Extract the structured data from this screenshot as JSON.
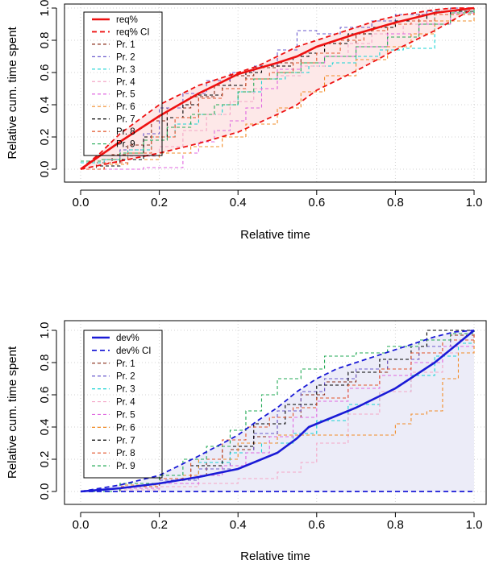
{
  "chart_data": [
    {
      "type": "line",
      "title": "",
      "xlabel": "Relative time",
      "ylabel": "Relative cum. time spent",
      "xlim": [
        0,
        1
      ],
      "ylim": [
        0,
        1
      ],
      "xticks": [
        "0.0",
        "0.2",
        "0.4",
        "0.6",
        "0.8",
        "1.0"
      ],
      "yticks": [
        "0.0",
        "0.2",
        "0.4",
        "0.6",
        "0.8",
        "1.0"
      ],
      "grid": true,
      "legend_position": "top-left",
      "accent_color": "#ee1111",
      "band_color": "#fde8e8",
      "legend": [
        "req%",
        "req% CI",
        "Pr. 1",
        "Pr. 2",
        "Pr. 3",
        "Pr. 4",
        "Pr. 5",
        "Pr. 6",
        "Pr. 7",
        "Pr. 8",
        "Pr. 9"
      ],
      "main": {
        "name": "req%",
        "color": "#ee1111",
        "x": [
          0,
          0.1,
          0.2,
          0.3,
          0.4,
          0.5,
          0.55,
          0.6,
          0.7,
          0.8,
          0.9,
          1.0
        ],
        "y": [
          0,
          0.17,
          0.33,
          0.47,
          0.59,
          0.66,
          0.7,
          0.76,
          0.84,
          0.91,
          0.97,
          1.0
        ]
      },
      "ci_upper": {
        "name": "req% CI",
        "x": [
          0,
          0.05,
          0.1,
          0.15,
          0.2,
          0.25,
          0.3,
          0.35,
          0.4,
          0.45,
          0.5,
          0.55,
          0.6,
          0.65,
          0.7,
          0.75,
          0.8,
          0.85,
          0.9,
          0.95,
          1.0
        ],
        "y": [
          0,
          0.1,
          0.22,
          0.31,
          0.4,
          0.46,
          0.52,
          0.56,
          0.6,
          0.64,
          0.7,
          0.76,
          0.8,
          0.84,
          0.88,
          0.92,
          0.95,
          0.97,
          0.99,
          1.0,
          1.0
        ]
      },
      "ci_lower": {
        "name": "req% CI",
        "x": [
          0,
          0.1,
          0.2,
          0.3,
          0.4,
          0.5,
          0.55,
          0.6,
          0.7,
          0.8,
          0.9,
          1.0
        ],
        "y": [
          0,
          0.05,
          0.1,
          0.16,
          0.23,
          0.34,
          0.4,
          0.49,
          0.61,
          0.74,
          0.86,
          1.0
        ]
      },
      "series": [
        {
          "name": "Pr. 1",
          "color": "#8b2e1a",
          "x": [
            0,
            0.04,
            0.08,
            0.12,
            0.18,
            0.22,
            0.28,
            0.34,
            0.38,
            0.44,
            0.5,
            0.56,
            0.62,
            0.7,
            0.78,
            0.86,
            0.92,
            1.0
          ],
          "y": [
            0,
            0.04,
            0.09,
            0.15,
            0.3,
            0.38,
            0.45,
            0.52,
            0.58,
            0.63,
            0.66,
            0.72,
            0.78,
            0.84,
            0.9,
            0.96,
            0.98,
            1.0
          ]
        },
        {
          "name": "Pr. 2",
          "color": "#6a5acd",
          "x": [
            0,
            0.06,
            0.1,
            0.16,
            0.2,
            0.26,
            0.32,
            0.38,
            0.44,
            0.5,
            0.55,
            0.6,
            0.66,
            0.74,
            0.8,
            0.88,
            0.94,
            1.0
          ],
          "y": [
            0,
            0.06,
            0.12,
            0.22,
            0.38,
            0.47,
            0.55,
            0.6,
            0.64,
            0.74,
            0.86,
            0.84,
            0.88,
            0.92,
            0.96,
            0.98,
            1.0,
            1.0
          ]
        },
        {
          "name": "Pr. 3",
          "color": "#17d3d3",
          "x": [
            0,
            0.06,
            0.12,
            0.18,
            0.24,
            0.3,
            0.36,
            0.4,
            0.46,
            0.52,
            0.58,
            0.64,
            0.7,
            0.76,
            0.82,
            0.86,
            0.9,
            1.0
          ],
          "y": [
            0.04,
            0.06,
            0.12,
            0.2,
            0.28,
            0.34,
            0.4,
            0.48,
            0.56,
            0.6,
            0.64,
            0.66,
            0.7,
            0.74,
            0.75,
            0.75,
            0.98,
            1.0
          ]
        },
        {
          "name": "Pr. 4",
          "color": "#f4a6c6",
          "x": [
            0,
            0.06,
            0.12,
            0.2,
            0.26,
            0.32,
            0.38,
            0.44,
            0.5,
            0.56,
            0.62,
            0.68,
            0.74,
            0.82,
            0.88,
            1.0
          ],
          "y": [
            0,
            0.04,
            0.08,
            0.14,
            0.24,
            0.34,
            0.42,
            0.5,
            0.58,
            0.64,
            0.7,
            0.78,
            0.84,
            0.9,
            0.96,
            1.0
          ]
        },
        {
          "name": "Pr. 5",
          "color": "#e066e0",
          "x": [
            0,
            0.08,
            0.16,
            0.23,
            0.26,
            0.3,
            0.34,
            0.38,
            0.42,
            0.46,
            0.5,
            0.56,
            0.62,
            0.7,
            0.78,
            0.86,
            0.94,
            1.0
          ],
          "y": [
            0,
            0.0,
            0.01,
            0.01,
            0.1,
            0.17,
            0.24,
            0.3,
            0.38,
            0.5,
            0.62,
            0.66,
            0.7,
            0.76,
            0.84,
            0.9,
            0.97,
            1.0
          ]
        },
        {
          "name": "Pr. 6",
          "color": "#f28c28",
          "x": [
            0,
            0.06,
            0.12,
            0.2,
            0.28,
            0.36,
            0.42,
            0.5,
            0.56,
            0.62,
            0.7,
            0.78,
            0.84,
            0.9,
            1.0
          ],
          "y": [
            0,
            0.03,
            0.06,
            0.1,
            0.14,
            0.2,
            0.28,
            0.38,
            0.48,
            0.58,
            0.68,
            0.76,
            0.84,
            0.92,
            1.0
          ]
        },
        {
          "name": "Pr. 7",
          "color": "#000000",
          "x": [
            0,
            0.05,
            0.1,
            0.16,
            0.22,
            0.26,
            0.3,
            0.36,
            0.42,
            0.46,
            0.54,
            0.58,
            0.62,
            0.68,
            0.74,
            0.8,
            0.88,
            0.94,
            1.0
          ],
          "y": [
            0,
            0.02,
            0.06,
            0.2,
            0.32,
            0.4,
            0.46,
            0.52,
            0.6,
            0.64,
            0.7,
            0.72,
            0.78,
            0.84,
            0.88,
            0.92,
            0.96,
            0.98,
            1.0
          ]
        },
        {
          "name": "Pr. 8",
          "color": "#e2532a",
          "x": [
            0,
            0.06,
            0.12,
            0.18,
            0.24,
            0.3,
            0.36,
            0.42,
            0.48,
            0.54,
            0.6,
            0.66,
            0.72,
            0.78,
            0.84,
            0.9,
            1.0
          ],
          "y": [
            0,
            0.04,
            0.1,
            0.2,
            0.32,
            0.44,
            0.5,
            0.56,
            0.6,
            0.66,
            0.72,
            0.8,
            0.86,
            0.9,
            0.92,
            0.96,
            1.0
          ]
        },
        {
          "name": "Pr. 9",
          "color": "#22aa55",
          "x": [
            0,
            0.05,
            0.1,
            0.16,
            0.22,
            0.28,
            0.34,
            0.4,
            0.44,
            0.5,
            0.56,
            0.62,
            0.7,
            0.78,
            0.86,
            0.94,
            1.0
          ],
          "y": [
            0.05,
            0.06,
            0.1,
            0.18,
            0.26,
            0.34,
            0.4,
            0.48,
            0.56,
            0.6,
            0.66,
            0.7,
            0.76,
            0.82,
            0.9,
            0.97,
            1.0
          ]
        }
      ]
    },
    {
      "type": "line",
      "title": "",
      "xlabel": "Relative time",
      "ylabel": "Relative cum. time spent",
      "xlim": [
        0,
        1
      ],
      "ylim": [
        0,
        1
      ],
      "xticks": [
        "0.0",
        "0.2",
        "0.4",
        "0.6",
        "0.8",
        "1.0"
      ],
      "yticks": [
        "0.0",
        "0.2",
        "0.4",
        "0.6",
        "0.8",
        "1.0"
      ],
      "grid": true,
      "legend_position": "top-left",
      "accent_color": "#1a1ad6",
      "band_color": "#ececf8",
      "legend": [
        "dev%",
        "dev% CI",
        "Pr. 1",
        "Pr. 2",
        "Pr. 3",
        "Pr. 4",
        "Pr. 5",
        "Pr. 6",
        "Pr. 7",
        "Pr. 8",
        "Pr. 9"
      ],
      "main": {
        "name": "dev%",
        "color": "#1a1ad6",
        "x": [
          0,
          0.1,
          0.2,
          0.3,
          0.4,
          0.5,
          0.55,
          0.58,
          0.6,
          0.7,
          0.8,
          0.9,
          1.0
        ],
        "y": [
          0,
          0.02,
          0.05,
          0.09,
          0.14,
          0.24,
          0.33,
          0.4,
          0.42,
          0.52,
          0.64,
          0.8,
          1.0
        ]
      },
      "ci_upper": {
        "name": "dev% CI",
        "x": [
          0,
          0.1,
          0.2,
          0.3,
          0.4,
          0.45,
          0.5,
          0.55,
          0.6,
          0.65,
          0.7,
          0.75,
          0.8,
          0.85,
          0.9,
          0.95,
          1.0
        ],
        "y": [
          0,
          0.04,
          0.1,
          0.22,
          0.35,
          0.44,
          0.52,
          0.62,
          0.7,
          0.76,
          0.8,
          0.84,
          0.88,
          0.92,
          0.96,
          0.99,
          1.0
        ]
      },
      "ci_lower": {
        "name": "dev% CI",
        "x": [
          0,
          0.25,
          0.5,
          0.75,
          1.0
        ],
        "y": [
          0,
          0,
          0,
          0,
          0
        ]
      },
      "series": [
        {
          "name": "Pr. 1",
          "color": "#8b2e1a",
          "x": [
            0,
            0.1,
            0.2,
            0.26,
            0.32,
            0.38,
            0.44,
            0.5,
            0.56,
            0.62,
            0.7,
            0.78,
            0.86,
            0.94,
            1.0
          ],
          "y": [
            0,
            0.02,
            0.05,
            0.1,
            0.18,
            0.26,
            0.34,
            0.46,
            0.6,
            0.68,
            0.74,
            0.82,
            0.9,
            0.97,
            1.0
          ]
        },
        {
          "name": "Pr. 2",
          "color": "#6a5acd",
          "x": [
            0,
            0.1,
            0.2,
            0.3,
            0.38,
            0.44,
            0.5,
            0.56,
            0.62,
            0.7,
            0.78,
            0.86,
            0.94,
            1.0
          ],
          "y": [
            0,
            0.03,
            0.07,
            0.14,
            0.24,
            0.36,
            0.5,
            0.62,
            0.7,
            0.76,
            0.82,
            0.9,
            0.98,
            1.0
          ]
        },
        {
          "name": "Pr. 3",
          "color": "#17d3d3",
          "x": [
            0,
            0.1,
            0.2,
            0.3,
            0.38,
            0.46,
            0.54,
            0.6,
            0.68,
            0.76,
            0.84,
            0.9,
            0.96,
            1.0
          ],
          "y": [
            0,
            0.04,
            0.08,
            0.18,
            0.24,
            0.3,
            0.36,
            0.44,
            0.54,
            0.62,
            0.72,
            0.84,
            0.92,
            1.0
          ]
        },
        {
          "name": "Pr. 4",
          "color": "#f4a6c6",
          "x": [
            0,
            0.1,
            0.2,
            0.3,
            0.4,
            0.5,
            0.56,
            0.6,
            0.68,
            0.76,
            0.84,
            0.92,
            1.0
          ],
          "y": [
            0,
            0.01,
            0.03,
            0.05,
            0.08,
            0.12,
            0.18,
            0.3,
            0.48,
            0.62,
            0.74,
            0.86,
            1.0
          ]
        },
        {
          "name": "Pr. 5",
          "color": "#e066e0",
          "x": [
            0,
            0.1,
            0.2,
            0.3,
            0.36,
            0.42,
            0.48,
            0.54,
            0.6,
            0.68,
            0.76,
            0.84,
            0.92,
            1.0
          ],
          "y": [
            0,
            0.02,
            0.05,
            0.1,
            0.16,
            0.24,
            0.34,
            0.46,
            0.56,
            0.64,
            0.72,
            0.8,
            0.9,
            1.0
          ]
        },
        {
          "name": "Pr. 6",
          "color": "#f28c28",
          "x": [
            0,
            0.1,
            0.2,
            0.3,
            0.4,
            0.5,
            0.6,
            0.7,
            0.76,
            0.8,
            0.84,
            0.88,
            0.92,
            0.96,
            1.0
          ],
          "y": [
            0,
            0.04,
            0.1,
            0.2,
            0.3,
            0.35,
            0.35,
            0.35,
            0.35,
            0.42,
            0.48,
            0.5,
            0.7,
            0.86,
            1.0
          ]
        },
        {
          "name": "Pr. 7",
          "color": "#000000",
          "x": [
            0,
            0.1,
            0.2,
            0.28,
            0.36,
            0.44,
            0.52,
            0.6,
            0.68,
            0.76,
            0.84,
            0.88,
            0.94,
            1.0
          ],
          "y": [
            0,
            0.03,
            0.08,
            0.16,
            0.28,
            0.42,
            0.54,
            0.66,
            0.74,
            0.82,
            0.9,
            1.0,
            1.0,
            1.0
          ]
        },
        {
          "name": "Pr. 8",
          "color": "#e2532a",
          "x": [
            0,
            0.1,
            0.2,
            0.28,
            0.36,
            0.42,
            0.48,
            0.54,
            0.6,
            0.68,
            0.76,
            0.84,
            0.92,
            1.0
          ],
          "y": [
            0,
            0.03,
            0.08,
            0.2,
            0.32,
            0.4,
            0.46,
            0.52,
            0.58,
            0.66,
            0.76,
            0.86,
            0.94,
            1.0
          ]
        },
        {
          "name": "Pr. 9",
          "color": "#22aa55",
          "x": [
            0,
            0.1,
            0.2,
            0.26,
            0.32,
            0.38,
            0.42,
            0.46,
            0.5,
            0.56,
            0.62,
            0.7,
            0.78,
            0.86,
            0.94,
            1.0
          ],
          "y": [
            0,
            0.05,
            0.1,
            0.2,
            0.28,
            0.38,
            0.5,
            0.6,
            0.7,
            0.76,
            0.84,
            0.86,
            0.9,
            0.94,
            0.98,
            1.0
          ]
        }
      ]
    }
  ]
}
